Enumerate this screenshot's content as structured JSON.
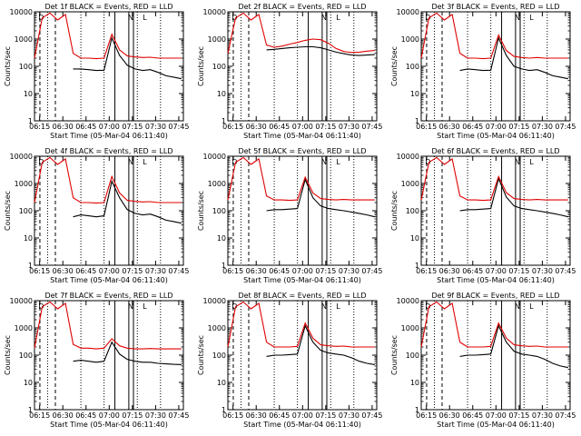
{
  "figure": {
    "ylabel": "Counts/sec",
    "xlabel": "Start Time (05-Mar-04 06:11:40)",
    "x_ticks": [
      "06:15",
      "06:30",
      "06:45",
      "07:00",
      "07:15",
      "07:30",
      "07:45"
    ],
    "y_ticks": [
      "1",
      "10",
      "100",
      "1000",
      "10000"
    ],
    "colors": {
      "events": "#000000",
      "lld": "#e00000",
      "axis": "#000000"
    }
  },
  "chart_data": [
    {
      "type": "line",
      "title": "Det 1f BLACK = Events, RED = LLD",
      "xlim": [
        "06:11:40",
        "07:48"
      ],
      "ylim": [
        1,
        10000
      ],
      "yscale": "log",
      "x_minutes": [
        0,
        5,
        10,
        15,
        20,
        25,
        30,
        35,
        40,
        45,
        50,
        55,
        60,
        65,
        70,
        75,
        80,
        85,
        90,
        95
      ],
      "series": [
        {
          "name": "Events",
          "color": "#000000",
          "values": [
            null,
            null,
            null,
            null,
            null,
            80,
            80,
            75,
            70,
            72,
            1100,
            250,
            110,
            80,
            70,
            75,
            60,
            45,
            40,
            35
          ]
        },
        {
          "name": "LLD",
          "color": "#e00000",
          "values": [
            200,
            6000,
            9000,
            5000,
            8000,
            300,
            200,
            200,
            190,
            200,
            1500,
            400,
            240,
            220,
            210,
            215,
            200,
            200,
            200,
            200
          ]
        }
      ]
    },
    {
      "type": "line",
      "title": "Det 2f BLACK = Events, RED = LLD",
      "xlim": [
        "06:11:40",
        "07:48"
      ],
      "ylim": [
        1,
        10000
      ],
      "yscale": "log",
      "x_minutes": [
        0,
        5,
        10,
        15,
        20,
        25,
        30,
        35,
        40,
        45,
        50,
        55,
        60,
        65,
        70,
        75,
        80,
        85,
        90,
        95
      ],
      "series": [
        {
          "name": "Events",
          "color": "#000000",
          "values": [
            null,
            null,
            null,
            null,
            null,
            400,
            420,
            450,
            480,
            500,
            520,
            520,
            480,
            400,
            330,
            290,
            260,
            250,
            260,
            270
          ]
        },
        {
          "name": "LLD",
          "color": "#e00000",
          "values": [
            300,
            6000,
            9000,
            5000,
            8000,
            600,
            500,
            550,
            650,
            750,
            900,
            1000,
            950,
            700,
            450,
            350,
            320,
            330,
            360,
            380
          ]
        }
      ]
    },
    {
      "type": "line",
      "title": "Det 3f BLACK = Events, RED = LLD",
      "xlim": [
        "06:11:40",
        "07:48"
      ],
      "ylim": [
        1,
        10000
      ],
      "yscale": "log",
      "x_minutes": [
        0,
        5,
        10,
        15,
        20,
        25,
        30,
        35,
        40,
        45,
        50,
        55,
        60,
        65,
        70,
        75,
        80,
        85,
        90,
        95
      ],
      "series": [
        {
          "name": "Events",
          "color": "#000000",
          "values": [
            null,
            null,
            null,
            null,
            null,
            70,
            80,
            75,
            70,
            72,
            1100,
            250,
            100,
            80,
            70,
            75,
            60,
            45,
            40,
            35
          ]
        },
        {
          "name": "LLD",
          "color": "#e00000",
          "values": [
            200,
            6000,
            9000,
            5000,
            8000,
            300,
            200,
            200,
            190,
            200,
            1400,
            380,
            230,
            210,
            200,
            210,
            200,
            200,
            200,
            200
          ]
        }
      ]
    },
    {
      "type": "line",
      "title": "Det 4f BLACK = Events, RED = LLD",
      "xlim": [
        "06:11:40",
        "07:48"
      ],
      "ylim": [
        1,
        10000
      ],
      "yscale": "log",
      "x_minutes": [
        0,
        5,
        10,
        15,
        20,
        25,
        30,
        35,
        40,
        45,
        50,
        55,
        60,
        65,
        70,
        75,
        80,
        85,
        90,
        95
      ],
      "series": [
        {
          "name": "Events",
          "color": "#000000",
          "values": [
            null,
            null,
            null,
            null,
            null,
            60,
            70,
            65,
            60,
            65,
            1200,
            300,
            110,
            80,
            70,
            75,
            60,
            45,
            40,
            35
          ]
        },
        {
          "name": "LLD",
          "color": "#e00000",
          "values": [
            200,
            6000,
            9000,
            5000,
            8000,
            300,
            200,
            200,
            190,
            200,
            1800,
            450,
            240,
            220,
            210,
            215,
            200,
            200,
            200,
            200
          ]
        }
      ]
    },
    {
      "type": "line",
      "title": "Det 5f BLACK = Events, RED = LLD",
      "xlim": [
        "06:11:40",
        "07:48"
      ],
      "ylim": [
        1,
        10000
      ],
      "yscale": "log",
      "x_minutes": [
        0,
        5,
        10,
        15,
        20,
        25,
        30,
        35,
        40,
        45,
        50,
        55,
        60,
        65,
        70,
        75,
        80,
        85,
        90,
        95
      ],
      "series": [
        {
          "name": "Events",
          "color": "#000000",
          "values": [
            null,
            null,
            null,
            null,
            null,
            100,
            110,
            110,
            115,
            120,
            1400,
            300,
            150,
            120,
            110,
            100,
            90,
            80,
            70,
            60
          ]
        },
        {
          "name": "LLD",
          "color": "#e00000",
          "values": [
            250,
            6000,
            9000,
            5000,
            8000,
            350,
            250,
            250,
            240,
            250,
            1700,
            450,
            280,
            260,
            250,
            260,
            250,
            250,
            250,
            250
          ]
        }
      ]
    },
    {
      "type": "line",
      "title": "Det 6f BLACK = Events, RED = LLD",
      "xlim": [
        "06:11:40",
        "07:48"
      ],
      "ylim": [
        1,
        10000
      ],
      "yscale": "log",
      "x_minutes": [
        0,
        5,
        10,
        15,
        20,
        25,
        30,
        35,
        40,
        45,
        50,
        55,
        60,
        65,
        70,
        75,
        80,
        85,
        90,
        95
      ],
      "series": [
        {
          "name": "Events",
          "color": "#000000",
          "values": [
            null,
            null,
            null,
            null,
            null,
            100,
            110,
            110,
            115,
            120,
            1500,
            320,
            150,
            120,
            110,
            100,
            90,
            80,
            70,
            60
          ]
        },
        {
          "name": "LLD",
          "color": "#e00000",
          "values": [
            250,
            6000,
            9000,
            5000,
            8000,
            350,
            250,
            250,
            240,
            250,
            1800,
            460,
            280,
            260,
            250,
            260,
            250,
            250,
            250,
            250
          ]
        }
      ]
    },
    {
      "type": "line",
      "title": "Det 7f BLACK = Events, RED = LLD",
      "xlim": [
        "06:11:40",
        "07:48"
      ],
      "ylim": [
        1,
        10000
      ],
      "yscale": "log",
      "x_minutes": [
        0,
        5,
        10,
        15,
        20,
        25,
        30,
        35,
        40,
        45,
        50,
        55,
        60,
        65,
        70,
        75,
        80,
        85,
        90,
        95
      ],
      "series": [
        {
          "name": "Events",
          "color": "#000000",
          "values": [
            null,
            null,
            null,
            null,
            null,
            60,
            65,
            60,
            55,
            60,
            300,
            110,
            70,
            60,
            55,
            55,
            50,
            48,
            46,
            45
          ]
        },
        {
          "name": "LLD",
          "color": "#e00000",
          "values": [
            180,
            6000,
            9000,
            5000,
            8000,
            250,
            180,
            180,
            170,
            180,
            400,
            220,
            180,
            170,
            170,
            175,
            170,
            170,
            170,
            170
          ]
        }
      ]
    },
    {
      "type": "line",
      "title": "Det 8f BLACK = Events, RED = LLD",
      "xlim": [
        "06:11:40",
        "07:48"
      ],
      "ylim": [
        1,
        10000
      ],
      "yscale": "log",
      "x_minutes": [
        0,
        5,
        10,
        15,
        20,
        25,
        30,
        35,
        40,
        45,
        50,
        55,
        60,
        65,
        70,
        75,
        80,
        85,
        90,
        95
      ],
      "series": [
        {
          "name": "Events",
          "color": "#000000",
          "values": [
            null,
            null,
            null,
            null,
            null,
            90,
            100,
            100,
            105,
            110,
            1200,
            300,
            150,
            120,
            110,
            100,
            80,
            60,
            50,
            45
          ]
        },
        {
          "name": "LLD",
          "color": "#e00000",
          "values": [
            200,
            6000,
            9000,
            5000,
            8000,
            300,
            200,
            200,
            200,
            210,
            1500,
            420,
            240,
            220,
            210,
            215,
            200,
            200,
            200,
            200
          ]
        }
      ]
    },
    {
      "type": "line",
      "title": "Det 9f BLACK = Events, RED = LLD",
      "xlim": [
        "06:11:40",
        "07:48"
      ],
      "ylim": [
        1,
        10000
      ],
      "yscale": "log",
      "x_minutes": [
        0,
        5,
        10,
        15,
        20,
        25,
        30,
        35,
        40,
        45,
        50,
        55,
        60,
        65,
        70,
        75,
        80,
        85,
        90,
        95
      ],
      "series": [
        {
          "name": "Events",
          "color": "#000000",
          "values": [
            null,
            null,
            null,
            null,
            null,
            90,
            100,
            100,
            105,
            110,
            1200,
            300,
            140,
            110,
            100,
            90,
            70,
            50,
            40,
            35
          ]
        },
        {
          "name": "LLD",
          "color": "#e00000",
          "values": [
            200,
            6000,
            9000,
            5000,
            8000,
            300,
            200,
            200,
            200,
            210,
            1500,
            420,
            240,
            220,
            210,
            215,
            200,
            200,
            200,
            200
          ]
        }
      ]
    }
  ]
}
